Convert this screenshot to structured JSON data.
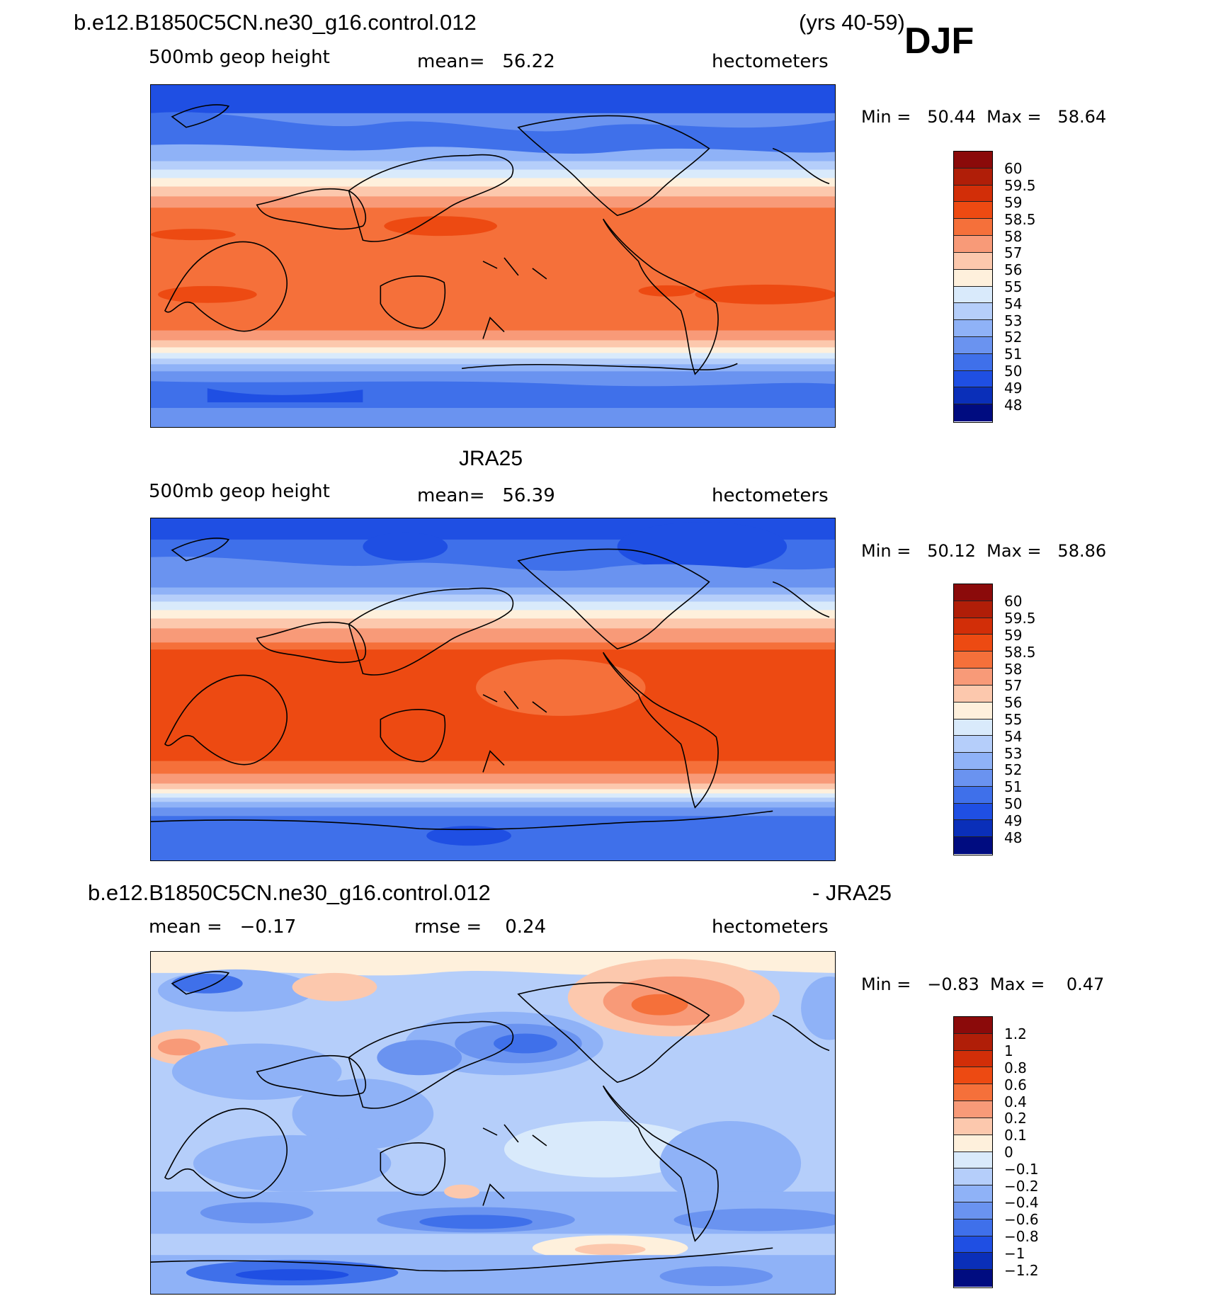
{
  "header": {
    "case_name": "b.e12.B1850C5CN.ne30_g16.control.012",
    "years": "(yrs 40-59)",
    "season": "DJF"
  },
  "panels": [
    {
      "title": "",
      "left_label": "500mb geop height",
      "center_label": "mean=   56.22",
      "right_label": "hectometers",
      "minmax": "Min =   50.44  Max =   58.64"
    },
    {
      "title": "JRA25",
      "left_label": "500mb geop height",
      "center_label": "mean=   56.39",
      "right_label": "hectometers",
      "minmax": "Min =   50.12  Max =   58.86"
    },
    {
      "title_left": "b.e12.B1850C5CN.ne30_g16.control.012",
      "title_right": "- JRA25",
      "left_label": "mean =   −0.17",
      "center_label": "rmse =    0.24",
      "right_label": "hectometers",
      "minmax": "Min =   −0.83  Max =    0.47"
    }
  ],
  "colorbars": {
    "height": {
      "labels": [
        "60",
        "59.5",
        "59",
        "58.5",
        "58",
        "57",
        "56",
        "55",
        "54",
        "53",
        "52",
        "51",
        "50",
        "49",
        "48"
      ],
      "colors": [
        "#8b0a0a",
        "#b01e08",
        "#d22e08",
        "#ed4a12",
        "#f5703a",
        "#f89a78",
        "#fcc8ad",
        "#fef0dc",
        "#d9eafb",
        "#b5cefa",
        "#8fb2f7",
        "#6a93f0",
        "#3f70ea",
        "#1f4fe3",
        "#0a2fb9",
        "#000c80"
      ]
    },
    "difference": {
      "labels": [
        "1.2",
        "1",
        "0.8",
        "0.6",
        "0.4",
        "0.2",
        "0.1",
        "0",
        "−0.1",
        "−0.2",
        "−0.4",
        "−0.6",
        "−0.8",
        "−1",
        "−1.2"
      ],
      "colors": [
        "#8b0a0a",
        "#b01e08",
        "#d22e08",
        "#ed4a12",
        "#f5703a",
        "#f89a78",
        "#fcc8ad",
        "#fef0dc",
        "#d9eafb",
        "#b5cefa",
        "#8fb2f7",
        "#6a93f0",
        "#3f70ea",
        "#1f4fe3",
        "#0a2fb9",
        "#000c80"
      ]
    }
  }
}
